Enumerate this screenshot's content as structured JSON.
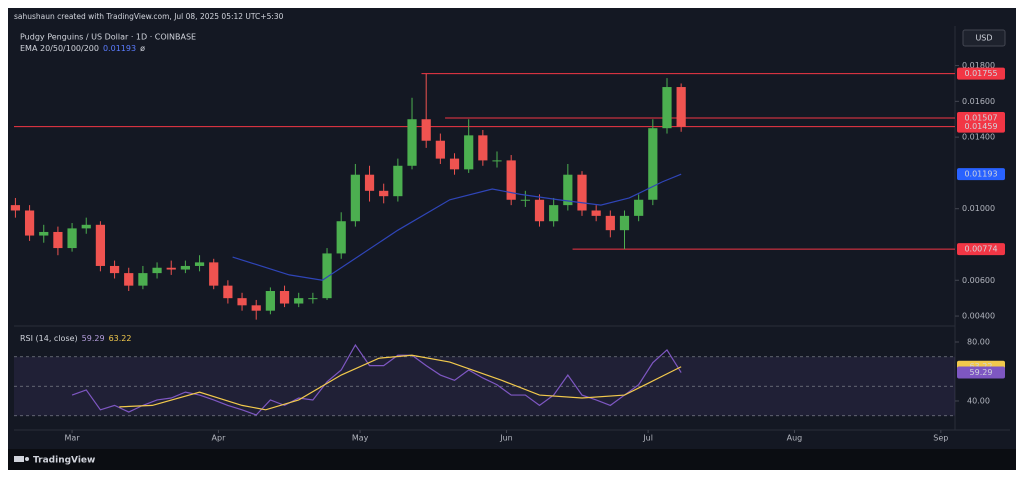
{
  "chart_data": {
    "type": "candlestick",
    "credit": "sahushaun created with TradingView.com, Jul 08, 2025 05:12 UTC+5:30",
    "title": "Pudgy Penguins / US Dollar · 1D · COINBASE",
    "currency": "USD",
    "footer": "TradingView",
    "up_color": "#4caf50",
    "down_color": "#ef5350",
    "x": [
      48,
      51,
      54,
      57,
      60,
      63,
      66,
      69,
      72,
      75,
      78,
      81,
      84,
      87,
      90,
      93,
      96,
      99,
      102,
      105,
      108,
      111,
      114,
      117,
      120,
      123,
      126,
      129,
      132,
      135,
      138,
      141,
      144,
      147,
      150,
      153,
      156,
      159,
      162,
      165,
      168,
      171,
      174,
      177,
      180,
      183,
      186,
      189
    ],
    "open": [
      0.0102,
      0.0099,
      0.0085,
      0.0087,
      0.0078,
      0.0089,
      0.0091,
      0.0068,
      0.0064,
      0.0057,
      0.0064,
      0.0067,
      0.0066,
      0.0068,
      0.007,
      0.0057,
      0.005,
      0.0046,
      0.0043,
      0.0054,
      0.0047,
      0.005,
      0.005,
      0.0075,
      0.0093,
      0.0119,
      0.011,
      0.0107,
      0.0124,
      0.015,
      0.0138,
      0.0128,
      0.0122,
      0.0141,
      0.0127,
      0.0127,
      0.0105,
      0.0105,
      0.0093,
      0.0102,
      0.0119,
      0.0099,
      0.0096,
      0.0088,
      0.0096,
      0.0105,
      0.0145,
      0.0168
    ],
    "high": [
      0.0106,
      0.0102,
      0.0091,
      0.009,
      0.0092,
      0.0095,
      0.0093,
      0.0071,
      0.0067,
      0.0068,
      0.007,
      0.0071,
      0.0071,
      0.0074,
      0.0072,
      0.006,
      0.0053,
      0.0049,
      0.0056,
      0.0057,
      0.0053,
      0.0053,
      0.0078,
      0.0098,
      0.0125,
      0.0124,
      0.0114,
      0.0128,
      0.0162,
      0.01755,
      0.0142,
      0.0131,
      0.015,
      0.0144,
      0.0132,
      0.013,
      0.011,
      0.0108,
      0.0106,
      0.0125,
      0.0121,
      0.0102,
      0.0099,
      0.0099,
      0.0108,
      0.015,
      0.0173,
      0.017
    ],
    "low": [
      0.0095,
      0.0082,
      0.0081,
      0.0074,
      0.0076,
      0.0086,
      0.0065,
      0.0061,
      0.0054,
      0.0055,
      0.0061,
      0.0063,
      0.0064,
      0.0065,
      0.0055,
      0.0047,
      0.0043,
      0.0038,
      0.0041,
      0.0045,
      0.0045,
      0.0047,
      0.0049,
      0.0072,
      0.009,
      0.0104,
      0.0103,
      0.0104,
      0.0122,
      0.0134,
      0.0125,
      0.0119,
      0.012,
      0.0124,
      0.0123,
      0.0102,
      0.0101,
      0.009,
      0.009,
      0.0099,
      0.0096,
      0.0093,
      0.0084,
      0.00774,
      0.0093,
      0.0102,
      0.0142,
      0.0143
    ],
    "close": [
      0.0099,
      0.0085,
      0.0087,
      0.0078,
      0.0089,
      0.0091,
      0.0068,
      0.0064,
      0.0057,
      0.0064,
      0.0067,
      0.0066,
      0.0068,
      0.007,
      0.0057,
      0.005,
      0.0046,
      0.0043,
      0.0054,
      0.0047,
      0.005,
      0.005,
      0.0075,
      0.0093,
      0.0119,
      0.011,
      0.0107,
      0.0124,
      0.015,
      0.0138,
      0.0128,
      0.0122,
      0.0141,
      0.0127,
      0.0127,
      0.0105,
      0.0105,
      0.0093,
      0.0102,
      0.0119,
      0.0099,
      0.0096,
      0.0088,
      0.0096,
      0.0105,
      0.0145,
      0.0168,
      0.01459
    ],
    "xlim": [
      47.7,
      247
    ],
    "xticks": [
      {
        "value": 60,
        "label": "Mar"
      },
      {
        "value": 91,
        "label": "Apr"
      },
      {
        "value": 121,
        "label": "May"
      },
      {
        "value": 152,
        "label": "Jun"
      },
      {
        "value": 182,
        "label": "Jul"
      },
      {
        "value": 213,
        "label": "Aug"
      },
      {
        "value": 244,
        "label": "Sep"
      }
    ],
    "ylim": [
      0.0035,
      0.0201
    ],
    "yticks": [
      {
        "value": 0.018,
        "label": "0.01800"
      },
      {
        "value": 0.016,
        "label": "0.01600"
      },
      {
        "value": 0.014,
        "label": "0.01400"
      },
      {
        "value": 0.01,
        "label": "0.01000"
      },
      {
        "value": 0.006,
        "label": "0.00600"
      },
      {
        "value": 0.004,
        "label": "0.00400"
      }
    ],
    "levels": [
      {
        "value": 0.01755,
        "from": 134,
        "color": "#f23645"
      },
      {
        "value": 0.01507,
        "from": 139,
        "color": "#f23645"
      },
      {
        "value": 0.01459,
        "color": "#f23645"
      },
      {
        "value": 0.00774,
        "from": 166,
        "color": "#f23645"
      }
    ],
    "ema": {
      "name": "EMA 20/50/100/200",
      "value": 0.01193,
      "symbol": "ø",
      "color": "#2f45b8",
      "x": [
        94,
        106,
        113,
        121,
        129,
        140,
        149,
        155,
        163,
        172,
        178,
        185,
        189
      ],
      "values": [
        0.0073,
        0.0063,
        0.006,
        0.0074,
        0.0088,
        0.0105,
        0.0111,
        0.0108,
        0.0105,
        0.0102,
        0.0106,
        0.0115,
        0.01193
      ]
    },
    "rsi": {
      "name": "RSI (14, close)",
      "value": 59.29,
      "ma_value": 63.22,
      "color": "#7e57c2",
      "ma_color": "#f2c94c",
      "ylim": [
        23.7,
        89.5
      ],
      "yticks": [
        {
          "value": 80,
          "label": "80.00"
        },
        {
          "value": 40,
          "label": "40.00"
        }
      ],
      "levels": [
        70,
        50,
        30
      ],
      "x": [
        60,
        63,
        66,
        69,
        72,
        75,
        78,
        81,
        84,
        87,
        90,
        93,
        96,
        99,
        102,
        105,
        108,
        111,
        114,
        117,
        120,
        123,
        126,
        129,
        132,
        135,
        138,
        141,
        144,
        147,
        150,
        153,
        156,
        159,
        162,
        165,
        168,
        171,
        174,
        177,
        180,
        183,
        186,
        189
      ],
      "values": [
        44,
        47.5,
        34,
        37,
        32.5,
        37,
        40.7,
        42,
        46,
        44,
        40.7,
        37,
        34,
        30.5,
        40.7,
        37,
        42,
        40.7,
        53,
        61,
        78,
        64,
        64,
        71,
        71,
        64,
        57.6,
        54,
        61,
        55.6,
        51,
        44,
        44,
        37,
        44,
        57.6,
        44,
        40.7,
        37,
        44,
        51,
        66,
        74.6,
        59.29
      ],
      "ma_x": [
        70,
        77,
        87,
        96,
        101,
        108,
        117,
        125,
        132,
        140,
        151,
        159,
        168,
        177,
        182,
        189
      ],
      "ma_values": [
        36,
        37,
        46,
        37,
        34,
        40.7,
        57.6,
        69,
        71,
        66.4,
        54,
        44,
        42,
        44,
        52,
        63.22
      ]
    }
  }
}
